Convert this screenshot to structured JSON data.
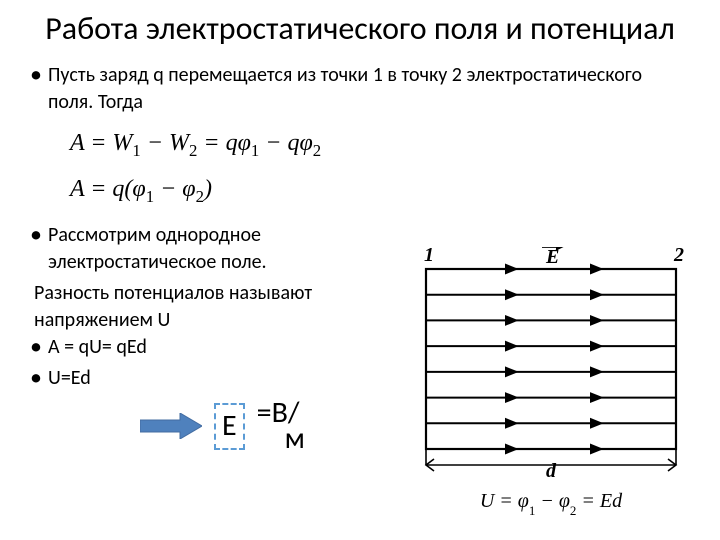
{
  "title": "Работа электростатического поля и потенциал",
  "p1": "Пусть заряд q перемещается из точки 1 в точку 2 электростатического поля. Тогда",
  "formula1_html": "A = W<sub>1</sub> − W<sub>2</sub> = qφ<sub>1</sub> − qφ<sub>2</sub>",
  "formula2_html": "A = q(φ<sub>1</sub> − φ<sub>2</sub>)",
  "p2": "Рассмотрим однородное электростатическое поле.",
  "p3": "Разность потенциалов называют напряжением U",
  "p4": "A = qU= qEd",
  "p5": "U=Ed",
  "e_label": "E",
  "eq_text": "=В/",
  "eq_m": "м",
  "diagram": {
    "label_1": "1",
    "label_2": "2",
    "label_E": "E",
    "label_d": "d",
    "caption_html": "U = φ<sub>1</sub> − φ<sub>2</sub> = Ed",
    "line_count": 8,
    "colors": {
      "stroke": "#000000"
    }
  },
  "arrow_color": "#4f81bd"
}
